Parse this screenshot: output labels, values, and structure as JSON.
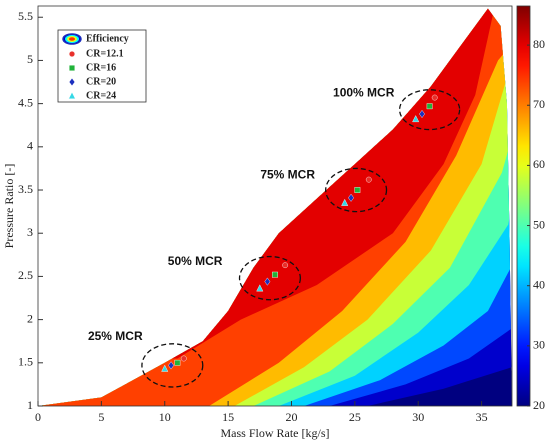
{
  "chart_data": {
    "type": "contour-map",
    "x_label": "Mass Flow Rate [kg/s]",
    "y_label": "Pressure Ratio [-]",
    "xlim": [
      0,
      37.4
    ],
    "ylim": [
      1,
      5.63
    ],
    "xticks": [
      0,
      5,
      10,
      15,
      20,
      25,
      30,
      35
    ],
    "yticks": [
      1,
      1.5,
      2,
      2.5,
      3,
      3.5,
      4,
      4.5,
      5,
      5.5
    ],
    "colormap": "jet",
    "clim": [
      20,
      86.5
    ],
    "cticks": [
      20,
      30,
      40,
      50,
      60,
      70,
      80
    ],
    "map_boundary": {
      "x": [
        0,
        5,
        10,
        13,
        15,
        17,
        19,
        22,
        25,
        28,
        31,
        33,
        35.5,
        36.5,
        37,
        37.2,
        37.3,
        37.4
      ],
      "y": [
        1,
        1.1,
        1.5,
        1.75,
        2.1,
        2.6,
        3.0,
        3.4,
        3.8,
        4.2,
        4.7,
        5.1,
        5.6,
        5.4,
        4.5,
        3,
        2,
        1
      ],
      "level": 20
    },
    "contours": [
      {
        "level": 25,
        "x": [
          26,
          32,
          37.4
        ],
        "y": [
          1,
          1.2,
          1.45
        ]
      },
      {
        "level": 33,
        "x": [
          23,
          29,
          34,
          37.4
        ],
        "y": [
          1,
          1.25,
          1.55,
          1.9
        ]
      },
      {
        "level": 42,
        "x": [
          21,
          27,
          32,
          35.5,
          37.3
        ],
        "y": [
          1,
          1.3,
          1.7,
          2.1,
          2.6
        ]
      },
      {
        "level": 50,
        "x": [
          19,
          25,
          30,
          34,
          37.1
        ],
        "y": [
          1,
          1.35,
          1.85,
          2.4,
          3.1
        ]
      },
      {
        "level": 58,
        "x": [
          17,
          23,
          28,
          32.5,
          36.6
        ],
        "y": [
          1,
          1.4,
          1.95,
          2.6,
          3.7
        ]
      },
      {
        "level": 66,
        "x": [
          15.5,
          21,
          26,
          31,
          35,
          37
        ],
        "y": [
          1,
          1.45,
          2.0,
          2.8,
          3.8,
          4.8
        ]
      },
      {
        "level": 74,
        "x": [
          13.5,
          19,
          24,
          29,
          33,
          36.3
        ],
        "y": [
          1,
          1.5,
          2.1,
          2.9,
          3.9,
          5.0
        ]
      },
      {
        "level": 80,
        "x": [
          11,
          16,
          22,
          28,
          32,
          34.5,
          36
        ],
        "y": [
          1.55,
          2.0,
          2.4,
          3.0,
          3.8,
          4.6,
          5.6
        ]
      }
    ],
    "legend_efficiency": "Efficiency",
    "series": [
      {
        "name": "CR=12.1",
        "color": "#e8302a",
        "marker": "circle",
        "x": [
          11.5,
          19.5,
          26.1,
          31.3
        ],
        "values": [
          1.55,
          2.63,
          3.62,
          4.57
        ]
      },
      {
        "name": "CR=16",
        "color": "#21b33a",
        "marker": "square",
        "x": [
          11,
          18.7,
          25.2,
          30.9
        ],
        "values": [
          1.5,
          2.52,
          3.5,
          4.47
        ]
      },
      {
        "name": "CR=20",
        "color": "#1c2fbf",
        "marker": "diamond",
        "x": [
          10.5,
          18.1,
          24.7,
          30.3
        ],
        "values": [
          1.47,
          2.44,
          3.41,
          4.38
        ]
      },
      {
        "name": "CR=24",
        "color": "#35d8e6",
        "marker": "triangle",
        "x": [
          10,
          17.5,
          24.2,
          29.8
        ],
        "values": [
          1.43,
          2.36,
          3.35,
          4.32
        ]
      }
    ],
    "annotations": [
      {
        "text": "25% MCR",
        "x": 6.1,
        "y": 1.8,
        "cx": 10.6,
        "cy": 1.47,
        "rx": 2.4,
        "ry": 0.25
      },
      {
        "text": "50% MCR",
        "x": 12.4,
        "y": 2.67,
        "cx": 18.3,
        "cy": 2.48,
        "rx": 2.4,
        "ry": 0.25
      },
      {
        "text": "75% MCR",
        "x": 19.7,
        "y": 3.67,
        "cx": 25.1,
        "cy": 3.5,
        "rx": 2.4,
        "ry": 0.25
      },
      {
        "text": "100% MCR",
        "x": 25.7,
        "y": 4.62,
        "cx": 30.9,
        "cy": 4.43,
        "rx": 2.37,
        "ry": 0.23
      }
    ]
  }
}
